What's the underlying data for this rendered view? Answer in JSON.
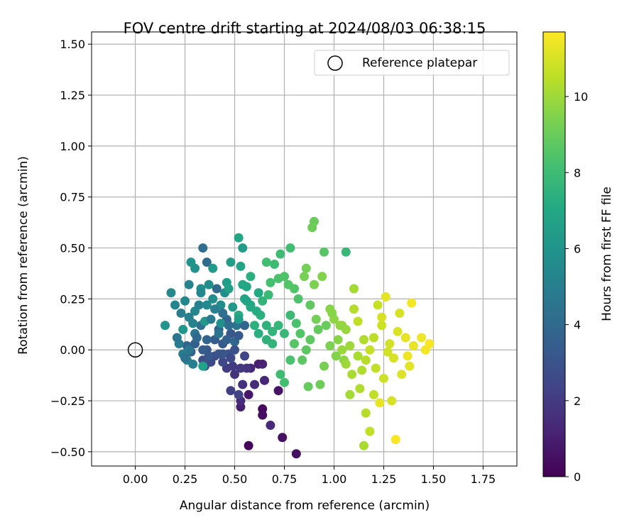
{
  "chart_data": {
    "type": "scatter",
    "title": "FOV centre drift starting at 2024/08/03 06:38:15",
    "xlabel": "Angular distance from reference (arcmin)",
    "ylabel": "Rotation from reference (arcmin)",
    "xlim": [
      -0.22,
      1.92
    ],
    "ylim": [
      -0.57,
      1.56
    ],
    "xticks": [
      "0.00",
      "0.25",
      "0.50",
      "0.75",
      "1.00",
      "1.25",
      "1.50",
      "1.75"
    ],
    "yticks": [
      "1.50",
      "1.25",
      "1.00",
      "0.75",
      "0.50",
      "0.25",
      "0.00",
      "−0.25",
      "−0.50"
    ],
    "grid": true,
    "legend": {
      "position": "top-right",
      "label": "Reference platepar"
    },
    "reference_point": {
      "x": 0.0,
      "y": 0.0
    },
    "colorbar": {
      "label": "Hours from first FF file",
      "colormap": "viridis",
      "range": [
        0,
        11.7
      ],
      "ticks": [
        "0",
        "2",
        "4",
        "6",
        "8",
        "10"
      ]
    },
    "points": [
      [
        0.57,
        -0.47,
        0.2
      ],
      [
        0.64,
        -0.29,
        0.3
      ],
      [
        0.64,
        -0.32,
        0.4
      ],
      [
        0.74,
        -0.43,
        0.5
      ],
      [
        0.81,
        -0.51,
        0.5
      ],
      [
        0.72,
        -0.2,
        0.6
      ],
      [
        0.57,
        -0.22,
        0.8
      ],
      [
        0.53,
        -0.28,
        1.0
      ],
      [
        0.62,
        -0.07,
        1.0
      ],
      [
        0.64,
        -0.07,
        1.1
      ],
      [
        0.58,
        -0.09,
        1.2
      ],
      [
        0.65,
        -0.15,
        1.3
      ],
      [
        0.68,
        -0.37,
        1.4
      ],
      [
        0.53,
        -0.25,
        1.5
      ],
      [
        0.6,
        -0.17,
        1.5
      ],
      [
        0.54,
        -0.17,
        1.6
      ],
      [
        0.5,
        -0.12,
        1.7
      ],
      [
        0.56,
        -0.09,
        1.8
      ],
      [
        0.53,
        -0.09,
        1.9
      ],
      [
        0.49,
        -0.08,
        2.0
      ],
      [
        0.46,
        -0.09,
        2.1
      ],
      [
        0.48,
        -0.2,
        2.2
      ],
      [
        0.52,
        -0.22,
        2.3
      ],
      [
        0.55,
        -0.03,
        2.4
      ],
      [
        0.44,
        -0.06,
        2.5
      ],
      [
        0.38,
        -0.06,
        2.6
      ],
      [
        0.4,
        -0.03,
        2.7
      ],
      [
        0.34,
        -0.05,
        2.8
      ],
      [
        0.35,
        -0.08,
        2.9
      ],
      [
        0.47,
        -0.02,
        3.0
      ],
      [
        0.42,
        -0.02,
        3.0
      ],
      [
        0.36,
        0.0,
        3.1
      ],
      [
        0.48,
        0.08,
        3.2
      ],
      [
        0.44,
        0.03,
        3.3
      ],
      [
        0.4,
        0.05,
        3.4
      ],
      [
        0.42,
        0.1,
        3.5
      ],
      [
        0.3,
        0.03,
        3.5
      ],
      [
        0.28,
        -0.01,
        3.6
      ],
      [
        0.26,
        0.02,
        3.7
      ],
      [
        0.36,
        0.05,
        3.8
      ],
      [
        0.5,
        0.04,
        3.9
      ],
      [
        0.41,
        0.3,
        4.0
      ],
      [
        0.36,
        0.43,
        4.1
      ],
      [
        0.34,
        0.5,
        4.2
      ],
      [
        0.33,
        0.12,
        4.3
      ],
      [
        0.46,
        0.15,
        4.4
      ],
      [
        0.51,
        0.12,
        4.5
      ],
      [
        0.42,
        0.08,
        4.5
      ],
      [
        0.3,
        0.08,
        4.6
      ],
      [
        0.27,
        0.0,
        4.7
      ],
      [
        0.24,
        -0.02,
        4.8
      ],
      [
        0.22,
        0.03,
        4.9
      ],
      [
        0.29,
        -0.07,
        5.0
      ],
      [
        0.26,
        -0.05,
        5.0
      ],
      [
        0.32,
        0.22,
        5.1
      ],
      [
        0.27,
        0.32,
        5.2
      ],
      [
        0.25,
        0.24,
        5.3
      ],
      [
        0.2,
        0.22,
        5.4
      ],
      [
        0.18,
        0.28,
        5.5
      ],
      [
        0.36,
        0.22,
        5.5
      ],
      [
        0.43,
        0.22,
        5.6
      ],
      [
        0.45,
        0.28,
        5.7
      ],
      [
        0.33,
        0.3,
        5.8
      ],
      [
        0.3,
        0.4,
        5.9
      ],
      [
        0.28,
        0.43,
        6.0
      ],
      [
        0.15,
        0.12,
        6.0
      ],
      [
        0.24,
        0.1,
        6.1
      ],
      [
        0.35,
        0.14,
        6.2
      ],
      [
        0.39,
        0.4,
        6.3
      ],
      [
        0.46,
        0.33,
        6.4
      ],
      [
        0.48,
        0.43,
        6.5
      ],
      [
        0.47,
        0.3,
        6.6
      ],
      [
        0.34,
        -0.08,
        6.7
      ],
      [
        0.55,
        0.25,
        6.8
      ],
      [
        0.56,
        0.31,
        6.9
      ],
      [
        0.58,
        0.21,
        7.0
      ],
      [
        0.62,
        0.28,
        7.1
      ],
      [
        0.52,
        0.17,
        7.2
      ],
      [
        0.62,
        0.08,
        7.3
      ],
      [
        0.6,
        0.12,
        7.4
      ],
      [
        0.66,
        0.05,
        7.5
      ],
      [
        0.69,
        0.09,
        7.6
      ],
      [
        0.72,
        0.12,
        7.7
      ],
      [
        0.75,
        0.08,
        7.8
      ],
      [
        0.78,
        0.17,
        7.9
      ],
      [
        0.7,
        0.42,
        8.0
      ],
      [
        0.73,
        0.47,
        8.0
      ],
      [
        0.66,
        0.43,
        8.1
      ],
      [
        0.68,
        0.33,
        8.2
      ],
      [
        0.72,
        0.35,
        8.3
      ],
      [
        0.75,
        0.36,
        8.4
      ],
      [
        0.77,
        0.32,
        8.5
      ],
      [
        0.8,
        0.03,
        8.6
      ],
      [
        0.84,
        -0.05,
        8.7
      ],
      [
        0.88,
        0.05,
        8.8
      ],
      [
        0.92,
        0.1,
        8.9
      ],
      [
        0.96,
        0.12,
        9.0
      ],
      [
        0.9,
        0.63,
        9.0
      ],
      [
        0.89,
        0.6,
        9.1
      ],
      [
        0.86,
        0.4,
        9.2
      ],
      [
        0.85,
        0.36,
        9.3
      ],
      [
        0.9,
        0.32,
        9.4
      ],
      [
        0.94,
        0.36,
        9.5
      ],
      [
        0.98,
        0.2,
        9.6
      ],
      [
        1.0,
        0.15,
        9.7
      ],
      [
        1.03,
        0.12,
        9.8
      ],
      [
        1.06,
        0.1,
        9.9
      ],
      [
        1.08,
        0.02,
        10.0
      ],
      [
        1.1,
        0.3,
        10.1
      ],
      [
        1.12,
        -0.03,
        10.2
      ],
      [
        1.14,
        -0.1,
        10.3
      ],
      [
        1.16,
        -0.05,
        10.4
      ],
      [
        1.2,
        0.06,
        10.5
      ],
      [
        1.18,
        -0.4,
        10.6
      ],
      [
        1.22,
        0.22,
        10.7
      ],
      [
        1.24,
        0.12,
        10.8
      ],
      [
        1.28,
        0.03,
        10.9
      ],
      [
        1.3,
        -0.04,
        11.0
      ],
      [
        1.34,
        -0.12,
        11.1
      ],
      [
        1.38,
        -0.08,
        11.2
      ],
      [
        1.4,
        0.02,
        11.3
      ],
      [
        1.44,
        0.06,
        11.4
      ],
      [
        1.46,
        0.0,
        11.5
      ],
      [
        1.48,
        0.03,
        11.6
      ],
      [
        1.31,
        -0.44,
        11.6
      ],
      [
        1.23,
        -0.26,
        11.3
      ],
      [
        1.29,
        -0.25,
        11.0
      ],
      [
        1.25,
        -0.14,
        10.8
      ],
      [
        1.2,
        -0.22,
        10.6
      ],
      [
        1.16,
        -0.31,
        10.4
      ],
      [
        1.15,
        -0.47,
        10.2
      ],
      [
        1.05,
        -0.05,
        9.7
      ],
      [
        0.95,
        -0.08,
        9.3
      ],
      [
        0.93,
        -0.17,
        9.1
      ],
      [
        0.87,
        -0.18,
        8.9
      ],
      [
        0.86,
        0.0,
        8.7
      ],
      [
        0.83,
        0.08,
        8.5
      ],
      [
        0.78,
        -0.05,
        8.3
      ],
      [
        0.75,
        -0.16,
        8.2
      ],
      [
        0.73,
        -0.12,
        8.0
      ],
      [
        0.95,
        0.48,
        8.6
      ],
      [
        1.06,
        0.48,
        7.8
      ],
      [
        0.78,
        0.5,
        8.1
      ],
      [
        0.64,
        0.24,
        7.6
      ],
      [
        0.67,
        0.27,
        7.9
      ],
      [
        0.58,
        0.36,
        7.3
      ],
      [
        0.54,
        0.32,
        7.0
      ],
      [
        0.52,
        0.55,
        6.9
      ],
      [
        0.54,
        0.5,
        6.4
      ],
      [
        0.53,
        0.41,
        6.8
      ],
      [
        0.4,
        0.2,
        5.0
      ],
      [
        0.38,
        0.15,
        4.8
      ],
      [
        0.44,
        0.18,
        4.3
      ],
      [
        0.46,
        0.14,
        3.6
      ],
      [
        0.52,
        0.07,
        3.3
      ],
      [
        0.5,
        0.0,
        2.9
      ],
      [
        0.55,
        0.12,
        3.9
      ],
      [
        0.48,
        -0.04,
        2.6
      ],
      [
        0.31,
        0.06,
        4.0
      ],
      [
        0.29,
        0.13,
        5.2
      ],
      [
        1.1,
        0.2,
        10.4
      ],
      [
        1.12,
        0.14,
        10.6
      ],
      [
        1.15,
        0.05,
        10.3
      ],
      [
        1.18,
        0.0,
        10.7
      ],
      [
        1.02,
        0.05,
        9.6
      ],
      [
        1.04,
        0.0,
        9.9
      ],
      [
        1.06,
        -0.07,
        10.0
      ],
      [
        1.09,
        -0.12,
        10.2
      ],
      [
        1.01,
        -0.03,
        9.5
      ],
      [
        0.98,
        0.02,
        9.4
      ],
      [
        1.26,
        0.26,
        11.2
      ],
      [
        1.33,
        0.18,
        11.0
      ],
      [
        1.39,
        0.23,
        11.5
      ],
      [
        1.36,
        0.06,
        11.3
      ],
      [
        1.37,
        -0.03,
        11.4
      ],
      [
        1.32,
        0.09,
        11.1
      ],
      [
        1.27,
        -0.01,
        10.9
      ],
      [
        1.24,
        0.16,
        11.0
      ],
      [
        1.21,
        -0.09,
        10.6
      ],
      [
        1.13,
        -0.19,
        10.3
      ],
      [
        1.08,
        -0.22,
        10.1
      ],
      [
        1.04,
        0.12,
        9.8
      ],
      [
        0.99,
        0.18,
        9.6
      ],
      [
        0.91,
        0.15,
        9.2
      ],
      [
        0.88,
        0.22,
        8.8
      ],
      [
        0.82,
        0.25,
        8.4
      ],
      [
        0.8,
        0.3,
        8.5
      ],
      [
        0.81,
        0.13,
        8.3
      ],
      [
        0.69,
        0.03,
        7.6
      ],
      [
        0.66,
        0.12,
        7.5
      ],
      [
        0.63,
        0.17,
        7.4
      ],
      [
        0.61,
        0.19,
        7.2
      ],
      [
        0.58,
        0.22,
        7.1
      ],
      [
        0.56,
        0.24,
        6.7
      ],
      [
        0.52,
        0.15,
        6.5
      ],
      [
        0.49,
        0.21,
        6.2
      ],
      [
        0.43,
        0.13,
        5.8
      ],
      [
        0.39,
        0.25,
        5.6
      ],
      [
        0.37,
        0.32,
        5.7
      ],
      [
        0.33,
        0.28,
        5.4
      ],
      [
        0.3,
        0.19,
        5.3
      ],
      [
        0.27,
        0.16,
        5.1
      ],
      [
        0.23,
        0.18,
        4.9
      ],
      [
        0.21,
        0.06,
        4.6
      ],
      [
        0.25,
        -0.04,
        4.4
      ],
      [
        0.34,
        0.0,
        3.4
      ],
      [
        0.37,
        -0.03,
        3.2
      ],
      [
        0.44,
        -0.02,
        3.1
      ],
      [
        0.46,
        0.05,
        3.7
      ],
      [
        0.47,
        0.12,
        4.1
      ]
    ]
  }
}
